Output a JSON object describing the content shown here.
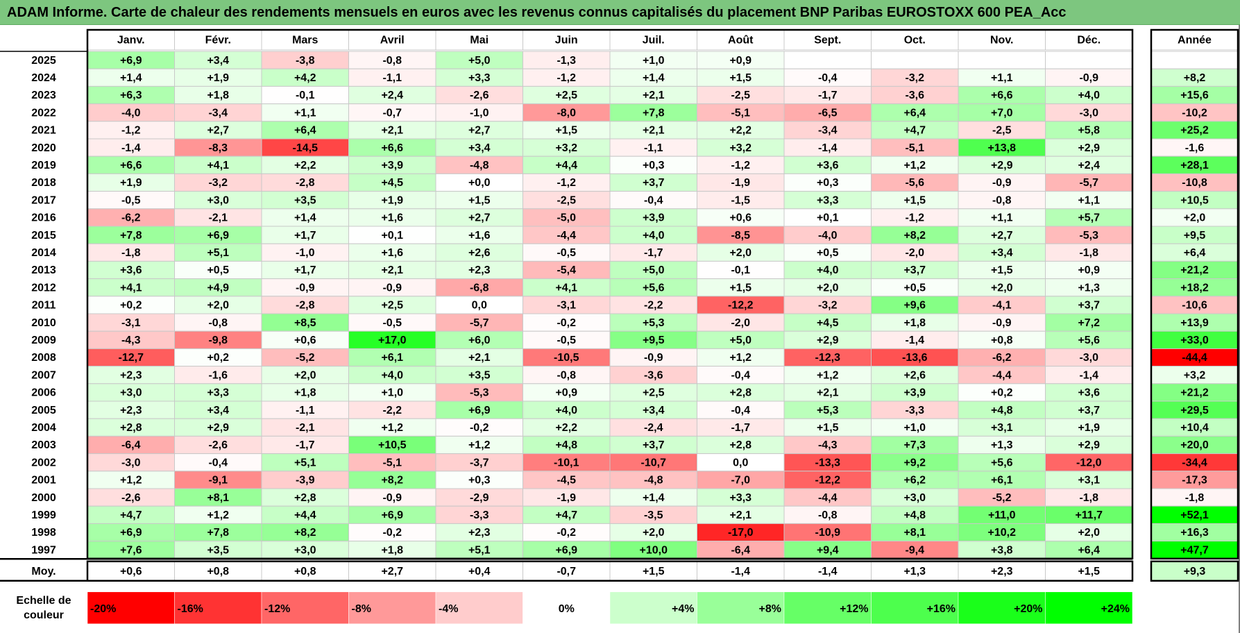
{
  "title": "ADAM Informe. Carte de chaleur des rendements mensuels en euros avec les revenus connus capitalisés du placement BNP Paribas EUROSTOXX 600 PEA_Acc",
  "chart_data": {
    "type": "heatmap",
    "title": "ADAM Informe. Carte de chaleur des rendements mensuels en euros avec les revenus connus capitalisés du placement BNP Paribas EUROSTOXX 600 PEA_Acc",
    "months": [
      "Janv.",
      "Févr.",
      "Mars",
      "Avril",
      "Mai",
      "Juin",
      "Juil.",
      "Août",
      "Sept.",
      "Oct.",
      "Nov.",
      "Déc."
    ],
    "annual_header": "Année",
    "rows": [
      {
        "year": "2025",
        "values": [
          "+6,9",
          "+3,4",
          "-3,8",
          "-0,8",
          "+5,0",
          "-1,3",
          "+1,0",
          "+0,9",
          "",
          "",
          "",
          ""
        ],
        "annual": ""
      },
      {
        "year": "2024",
        "values": [
          "+1,4",
          "+1,9",
          "+4,2",
          "-1,1",
          "+3,3",
          "-1,2",
          "+1,4",
          "+1,5",
          "-0,4",
          "-3,2",
          "+1,1",
          "-0,9"
        ],
        "annual": "+8,2"
      },
      {
        "year": "2023",
        "values": [
          "+6,3",
          "+1,8",
          "-0,1",
          "+2,4",
          "-2,6",
          "+2,5",
          "+2,1",
          "-2,5",
          "-1,7",
          "-3,6",
          "+6,6",
          "+4,0"
        ],
        "annual": "+15,6"
      },
      {
        "year": "2022",
        "values": [
          "-4,0",
          "-3,4",
          "+1,1",
          "-0,7",
          "-1,0",
          "-8,0",
          "+7,8",
          "-5,1",
          "-6,5",
          "+6,4",
          "+7,0",
          "-3,0"
        ],
        "annual": "-10,2"
      },
      {
        "year": "2021",
        "values": [
          "-1,2",
          "+2,7",
          "+6,4",
          "+2,1",
          "+2,7",
          "+1,5",
          "+2,1",
          "+2,2",
          "-3,4",
          "+4,7",
          "-2,5",
          "+5,8"
        ],
        "annual": "+25,2"
      },
      {
        "year": "2020",
        "values": [
          "-1,4",
          "-8,3",
          "-14,5",
          "+6,6",
          "+3,4",
          "+3,2",
          "-1,1",
          "+3,2",
          "-1,4",
          "-5,1",
          "+13,8",
          "+2,9"
        ],
        "annual": "-1,6"
      },
      {
        "year": "2019",
        "values": [
          "+6,6",
          "+4,1",
          "+2,2",
          "+3,9",
          "-4,8",
          "+4,4",
          "+0,3",
          "-1,2",
          "+3,6",
          "+1,2",
          "+2,9",
          "+2,4"
        ],
        "annual": "+28,1"
      },
      {
        "year": "2018",
        "values": [
          "+1,9",
          "-3,2",
          "-2,8",
          "+4,5",
          "+0,0",
          "-1,2",
          "+3,7",
          "-1,9",
          "+0,3",
          "-5,6",
          "-0,9",
          "-5,7"
        ],
        "annual": "-10,8"
      },
      {
        "year": "2017",
        "values": [
          "-0,5",
          "+3,0",
          "+3,5",
          "+1,9",
          "+1,5",
          "-2,5",
          "-0,4",
          "-1,5",
          "+3,3",
          "+1,5",
          "-0,8",
          "+1,1"
        ],
        "annual": "+10,5"
      },
      {
        "year": "2016",
        "values": [
          "-6,2",
          "-2,1",
          "+1,4",
          "+1,6",
          "+2,7",
          "-5,0",
          "+3,9",
          "+0,6",
          "+0,1",
          "-1,2",
          "+1,1",
          "+5,7"
        ],
        "annual": "+2,0"
      },
      {
        "year": "2015",
        "values": [
          "+7,8",
          "+6,9",
          "+1,7",
          "+0,1",
          "+1,6",
          "-4,4",
          "+4,0",
          "-8,5",
          "-4,0",
          "+8,2",
          "+2,7",
          "-5,3"
        ],
        "annual": "+9,5"
      },
      {
        "year": "2014",
        "values": [
          "-1,8",
          "+5,1",
          "-1,0",
          "+1,6",
          "+2,6",
          "-0,5",
          "-1,7",
          "+2,0",
          "+0,5",
          "-2,0",
          "+3,4",
          "-1,8"
        ],
        "annual": "+6,4"
      },
      {
        "year": "2013",
        "values": [
          "+3,6",
          "+0,5",
          "+1,7",
          "+2,1",
          "+2,3",
          "-5,4",
          "+5,0",
          "-0,1",
          "+4,0",
          "+3,7",
          "+1,5",
          "+0,9"
        ],
        "annual": "+21,2"
      },
      {
        "year": "2012",
        "values": [
          "+4,1",
          "+4,9",
          "-0,9",
          "-0,9",
          "-6,8",
          "+4,1",
          "+5,6",
          "+1,5",
          "+2,0",
          "+0,5",
          "+2,0",
          "+1,3"
        ],
        "annual": "+18,2"
      },
      {
        "year": "2011",
        "values": [
          "+0,2",
          "+2,0",
          "-2,8",
          "+2,5",
          "0,0",
          "-3,1",
          "-2,2",
          "-12,2",
          "-3,2",
          "+9,6",
          "-4,1",
          "+3,7"
        ],
        "annual": "-10,6"
      },
      {
        "year": "2010",
        "values": [
          "-3,1",
          "-0,8",
          "+8,5",
          "-0,5",
          "-5,7",
          "-0,2",
          "+5,3",
          "-2,0",
          "+4,5",
          "+1,8",
          "-0,9",
          "+7,2"
        ],
        "annual": "+13,9"
      },
      {
        "year": "2009",
        "values": [
          "-4,3",
          "-9,8",
          "+0,6",
          "+17,0",
          "+6,0",
          "-0,5",
          "+9,5",
          "+5,0",
          "+2,9",
          "-1,4",
          "+0,8",
          "+5,6"
        ],
        "annual": "+33,0"
      },
      {
        "year": "2008",
        "values": [
          "-12,7",
          "+0,2",
          "-5,2",
          "+6,1",
          "+2,1",
          "-10,5",
          "-0,9",
          "+1,2",
          "-12,3",
          "-13,6",
          "-6,2",
          "-3,0"
        ],
        "annual": "-44,4"
      },
      {
        "year": "2007",
        "values": [
          "+2,3",
          "-1,6",
          "+2,0",
          "+4,0",
          "+3,5",
          "-0,8",
          "-3,6",
          "-0,4",
          "+1,2",
          "+2,6",
          "-4,4",
          "-1,4"
        ],
        "annual": "+3,2"
      },
      {
        "year": "2006",
        "values": [
          "+3,0",
          "+3,3",
          "+1,8",
          "+1,0",
          "-5,3",
          "+0,9",
          "+2,5",
          "+2,8",
          "+2,1",
          "+3,9",
          "+0,2",
          "+3,6"
        ],
        "annual": "+21,2"
      },
      {
        "year": "2005",
        "values": [
          "+2,3",
          "+3,4",
          "-1,1",
          "-2,2",
          "+6,9",
          "+4,0",
          "+3,4",
          "-0,4",
          "+5,3",
          "-3,3",
          "+4,8",
          "+3,7"
        ],
        "annual": "+29,5"
      },
      {
        "year": "2004",
        "values": [
          "+2,8",
          "+2,9",
          "-2,1",
          "+1,2",
          "-0,2",
          "+2,2",
          "-2,4",
          "-1,7",
          "+1,5",
          "+1,0",
          "+3,1",
          "+1,9"
        ],
        "annual": "+10,4"
      },
      {
        "year": "2003",
        "values": [
          "-6,4",
          "-2,6",
          "-1,7",
          "+10,5",
          "+1,2",
          "+4,8",
          "+3,7",
          "+2,8",
          "-4,3",
          "+7,3",
          "+1,3",
          "+2,9"
        ],
        "annual": "+20,0"
      },
      {
        "year": "2002",
        "values": [
          "-3,0",
          "-0,4",
          "+5,1",
          "-5,1",
          "-3,7",
          "-10,1",
          "-10,7",
          "0,0",
          "-13,3",
          "+9,2",
          "+5,6",
          "-12,0"
        ],
        "annual": "-34,4"
      },
      {
        "year": "2001",
        "values": [
          "+1,2",
          "-9,1",
          "-3,9",
          "+8,2",
          "+0,3",
          "-4,5",
          "-4,8",
          "-7,0",
          "-12,2",
          "+6,2",
          "+6,1",
          "+3,1"
        ],
        "annual": "-17,3"
      },
      {
        "year": "2000",
        "values": [
          "-2,6",
          "+8,1",
          "+2,8",
          "-0,9",
          "-2,9",
          "-1,9",
          "+1,4",
          "+3,3",
          "-4,4",
          "+3,0",
          "-5,2",
          "-1,8"
        ],
        "annual": "-1,8"
      },
      {
        "year": "1999",
        "values": [
          "+4,7",
          "+1,2",
          "+4,4",
          "+6,9",
          "-3,3",
          "+4,7",
          "-3,5",
          "+2,1",
          "-0,8",
          "+4,8",
          "+11,0",
          "+11,7"
        ],
        "annual": "+52,1"
      },
      {
        "year": "1998",
        "values": [
          "+6,9",
          "+7,8",
          "+8,2",
          "-0,2",
          "+2,3",
          "-0,2",
          "+2,0",
          "-17,0",
          "-10,9",
          "+8,1",
          "+10,2",
          "+2,0"
        ],
        "annual": "+16,3"
      },
      {
        "year": "1997",
        "values": [
          "+7,6",
          "+3,5",
          "+3,0",
          "+1,8",
          "+5,1",
          "+6,9",
          "+10,0",
          "-6,4",
          "+9,4",
          "-9,4",
          "+3,8",
          "+6,4"
        ],
        "annual": "+47,7"
      }
    ],
    "average": {
      "label": "Moy.",
      "values": [
        "+0,6",
        "+0,8",
        "+0,8",
        "+2,7",
        "+0,4",
        "-0,7",
        "+1,5",
        "-1,4",
        "-1,4",
        "+1,3",
        "+2,3",
        "+1,5"
      ],
      "annual": "+9,3"
    },
    "color_scale": {
      "label": "Echelle de couleur",
      "stops": [
        {
          "label": "-20%",
          "value": -20,
          "color": "#ff0000"
        },
        {
          "label": "-16%",
          "value": -16,
          "color": "#ff3333"
        },
        {
          "label": "-12%",
          "value": -12,
          "color": "#ff6666"
        },
        {
          "label": "-8%",
          "value": -8,
          "color": "#ff9999"
        },
        {
          "label": "-4%",
          "value": -4,
          "color": "#ffcccc"
        },
        {
          "label": "0%",
          "value": 0,
          "color": "#ffffff"
        },
        {
          "label": "+4%",
          "value": 4,
          "color": "#ccffcc"
        },
        {
          "label": "+8%",
          "value": 8,
          "color": "#99ff99"
        },
        {
          "label": "+12%",
          "value": 12,
          "color": "#66ff66"
        },
        {
          "label": "+16%",
          "value": 16,
          "color": "#4dff4d"
        },
        {
          "label": "+20%",
          "value": 20,
          "color": "#1aff1a"
        },
        {
          "label": "+24%",
          "value": 24,
          "color": "#00ff00"
        }
      ]
    },
    "colors": {
      "title_bar": "#7dc67f",
      "negative_max": "#ff0000",
      "neutral": "#ffffff",
      "positive_max": "#00ff00",
      "grid": "#c8c8c8"
    }
  }
}
